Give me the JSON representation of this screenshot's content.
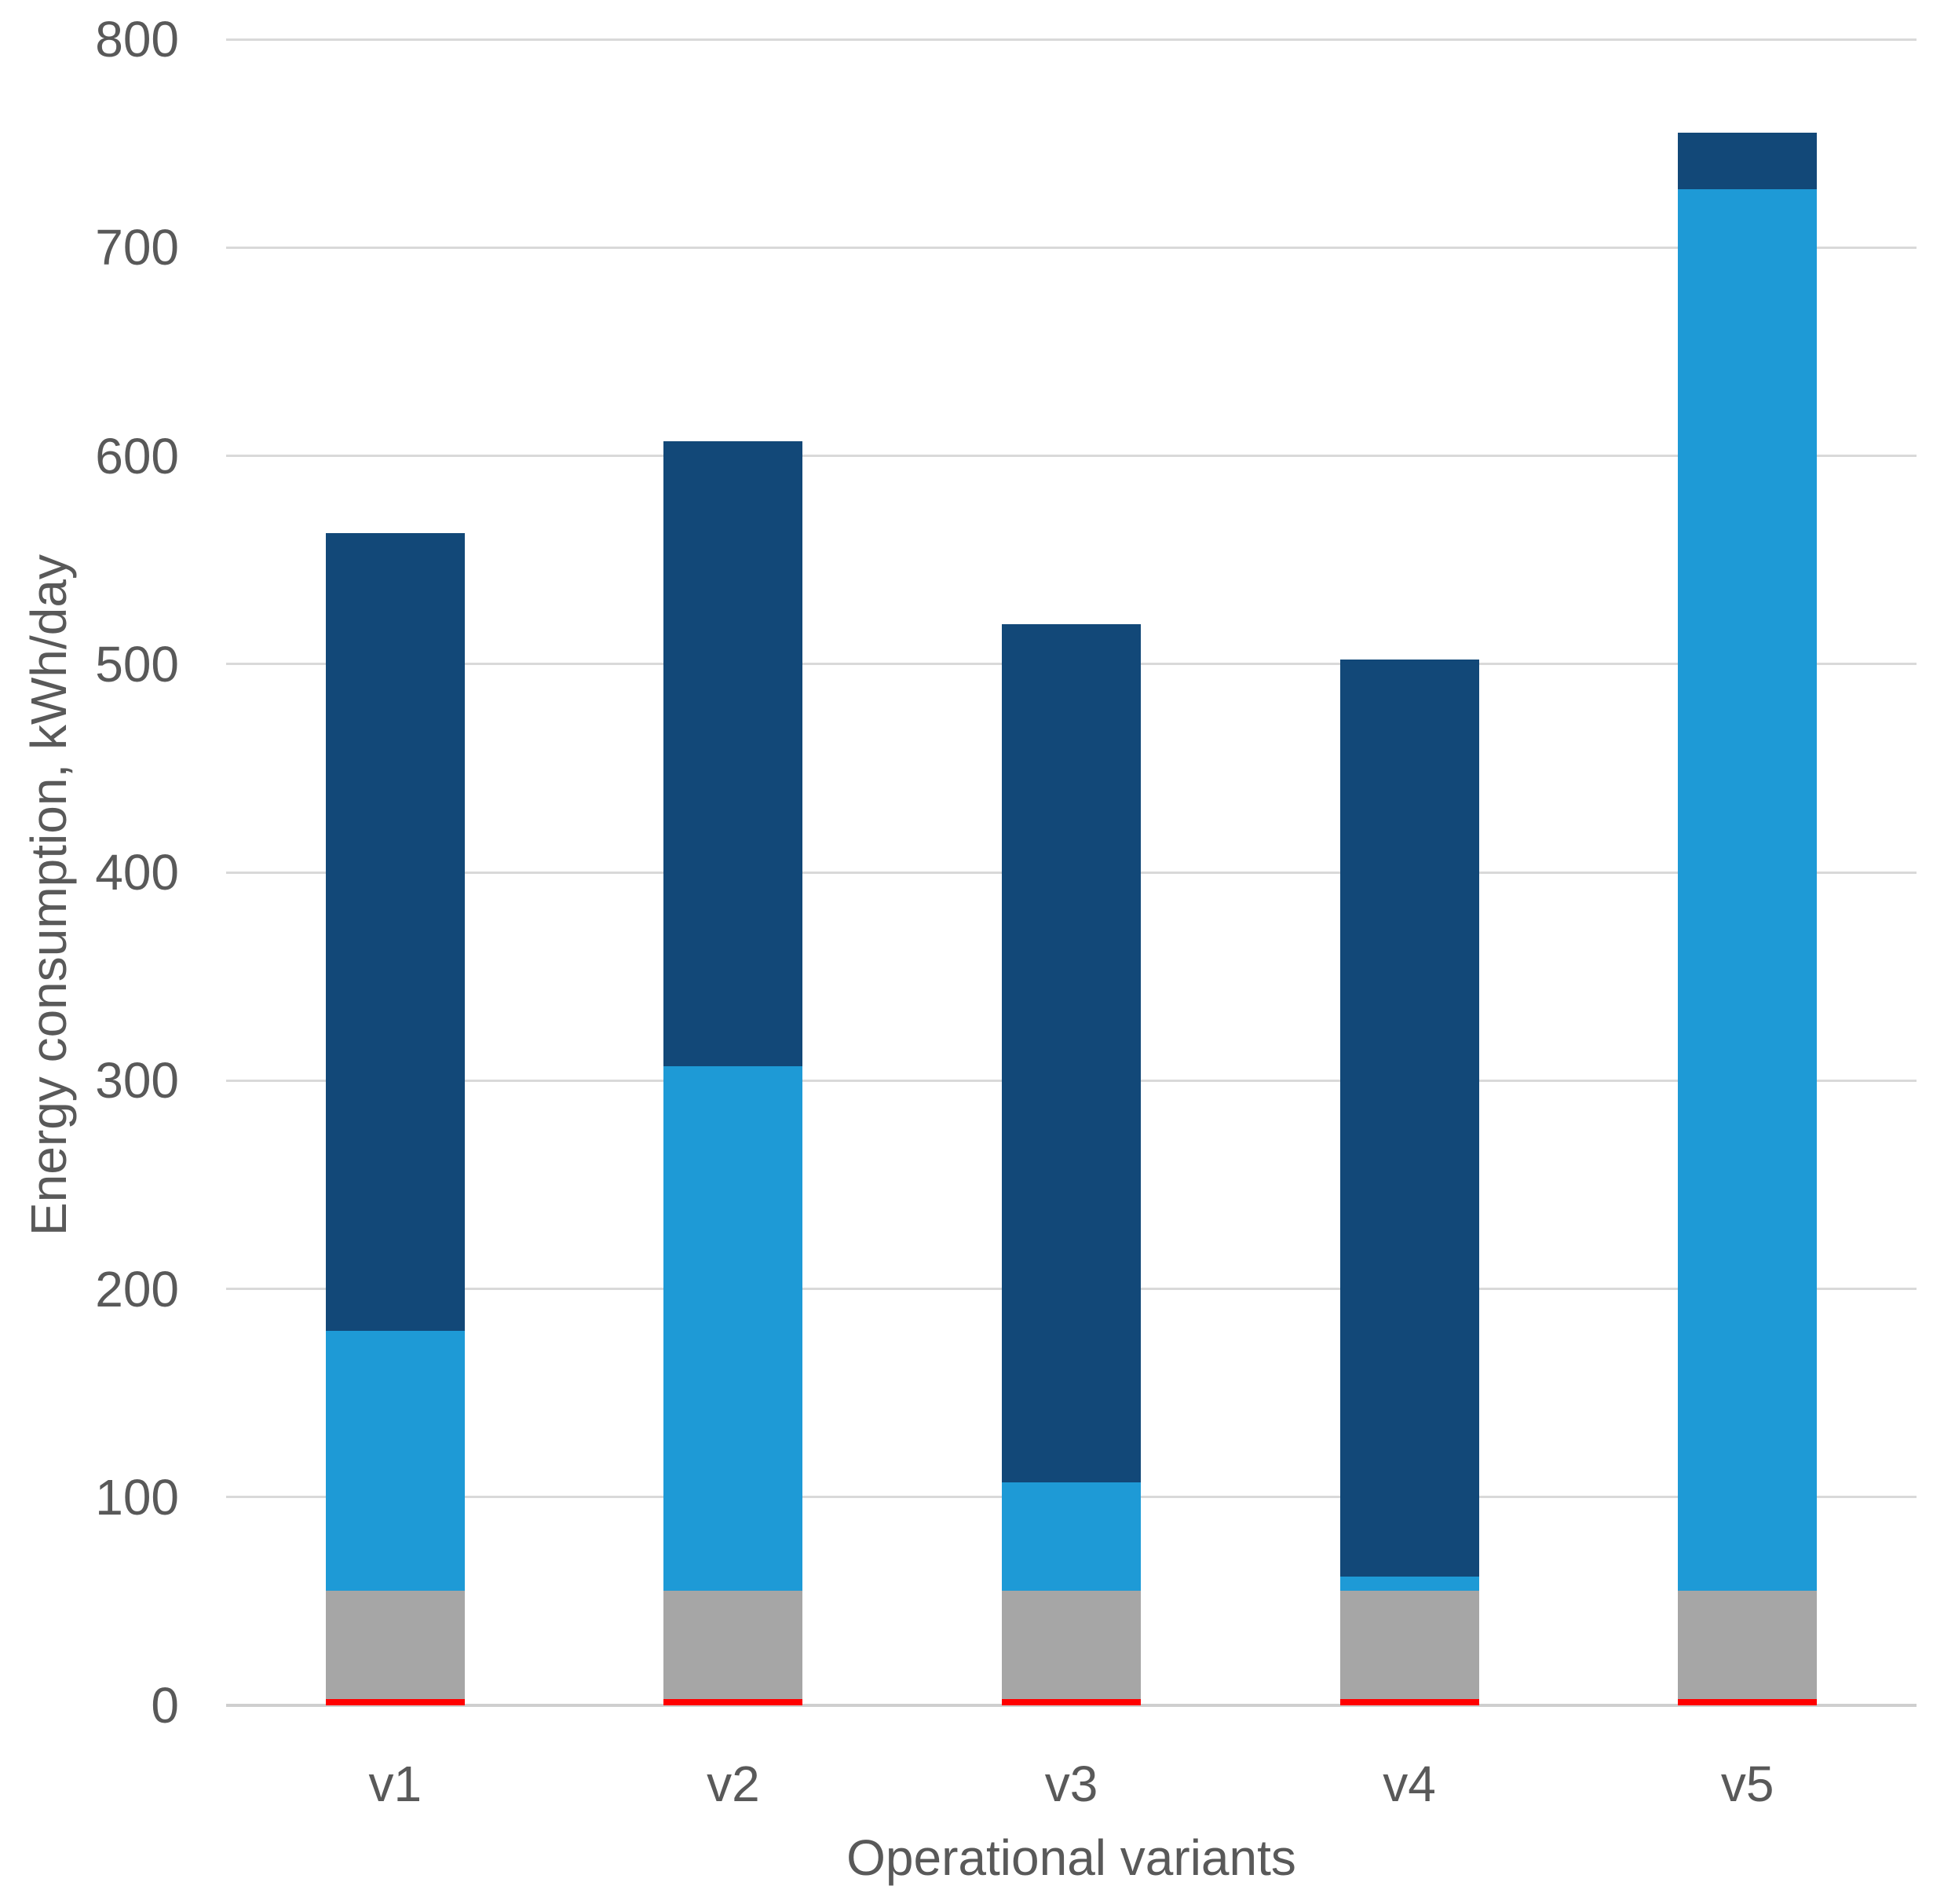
{
  "page": {
    "background": "#FFFFFF"
  },
  "chart_data": {
    "type": "bar",
    "stacked": true,
    "title": "",
    "xlabel": "Operational variants",
    "ylabel": "Energy consumption, kWh/day",
    "categories": [
      "v1",
      "v2",
      "v3",
      "v4",
      "v5"
    ],
    "series": [
      {
        "name": "red",
        "color": "#FF0000",
        "values": [
          3,
          3,
          3,
          3,
          3
        ]
      },
      {
        "name": "gray",
        "color": "#A6A6A6",
        "values": [
          52,
          52,
          52,
          52,
          52
        ]
      },
      {
        "name": "light-blue",
        "color": "#1E9AD6",
        "values": [
          125,
          252,
          52,
          7,
          673
        ]
      },
      {
        "name": "dark-blue",
        "color": "#124878",
        "values": [
          383,
          300,
          412,
          440,
          27
        ]
      }
    ],
    "stack_totals": [
      563,
      607,
      519,
      502,
      755
    ],
    "ylim": [
      0,
      800
    ],
    "y_ticks": [
      "800",
      "700",
      "600",
      "500",
      "400",
      "300",
      "200",
      "100",
      "0"
    ],
    "grid": true,
    "legend": "none",
    "axis_text_color": "#595959",
    "gridline_color": "#D9D9D9",
    "axis_line_color": "#CFCFCF"
  }
}
